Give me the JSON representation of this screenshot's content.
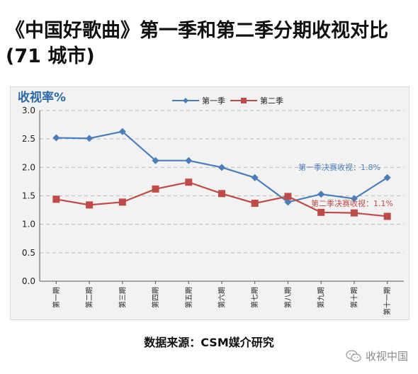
{
  "headline": "《中国好歌曲》第一季和第二季分期收视对比(71 城市)",
  "source_note": "数据来源：CSM媒介研究",
  "watermark": {
    "text": "收视中国",
    "icon": "wechat-icon"
  },
  "chart_data": {
    "type": "line",
    "title": "收视率%",
    "xlabel": "",
    "ylabel": "",
    "categories": [
      "第一期",
      "第二期",
      "第三期",
      "第四期",
      "第五期",
      "第六期",
      "第七期",
      "第八期",
      "第九期",
      "第十期",
      "第十一期"
    ],
    "series": [
      {
        "name": "第一季",
        "color": "#4a7ebb",
        "marker": "diamond",
        "values": [
          2.52,
          2.51,
          2.63,
          2.12,
          2.12,
          2.0,
          1.82,
          1.39,
          1.53,
          1.45,
          1.82
        ]
      },
      {
        "name": "第二季",
        "color": "#be4b48",
        "marker": "square",
        "values": [
          1.44,
          1.34,
          1.39,
          1.62,
          1.74,
          1.54,
          1.37,
          1.49,
          1.21,
          1.2,
          1.14
        ]
      }
    ],
    "ylim": [
      0,
      3.0
    ],
    "yticks": [
      "0.0",
      "0.5",
      "1.0",
      "1.5",
      "2.0",
      "2.5",
      "3.0"
    ],
    "grid": true,
    "legend": "top-center",
    "annotations": [
      {
        "text": "第一季决赛收视：1.8%",
        "color": "#4a7ebb"
      },
      {
        "text": "第二季决赛收视：1.1%",
        "color": "#be4b48"
      }
    ]
  }
}
